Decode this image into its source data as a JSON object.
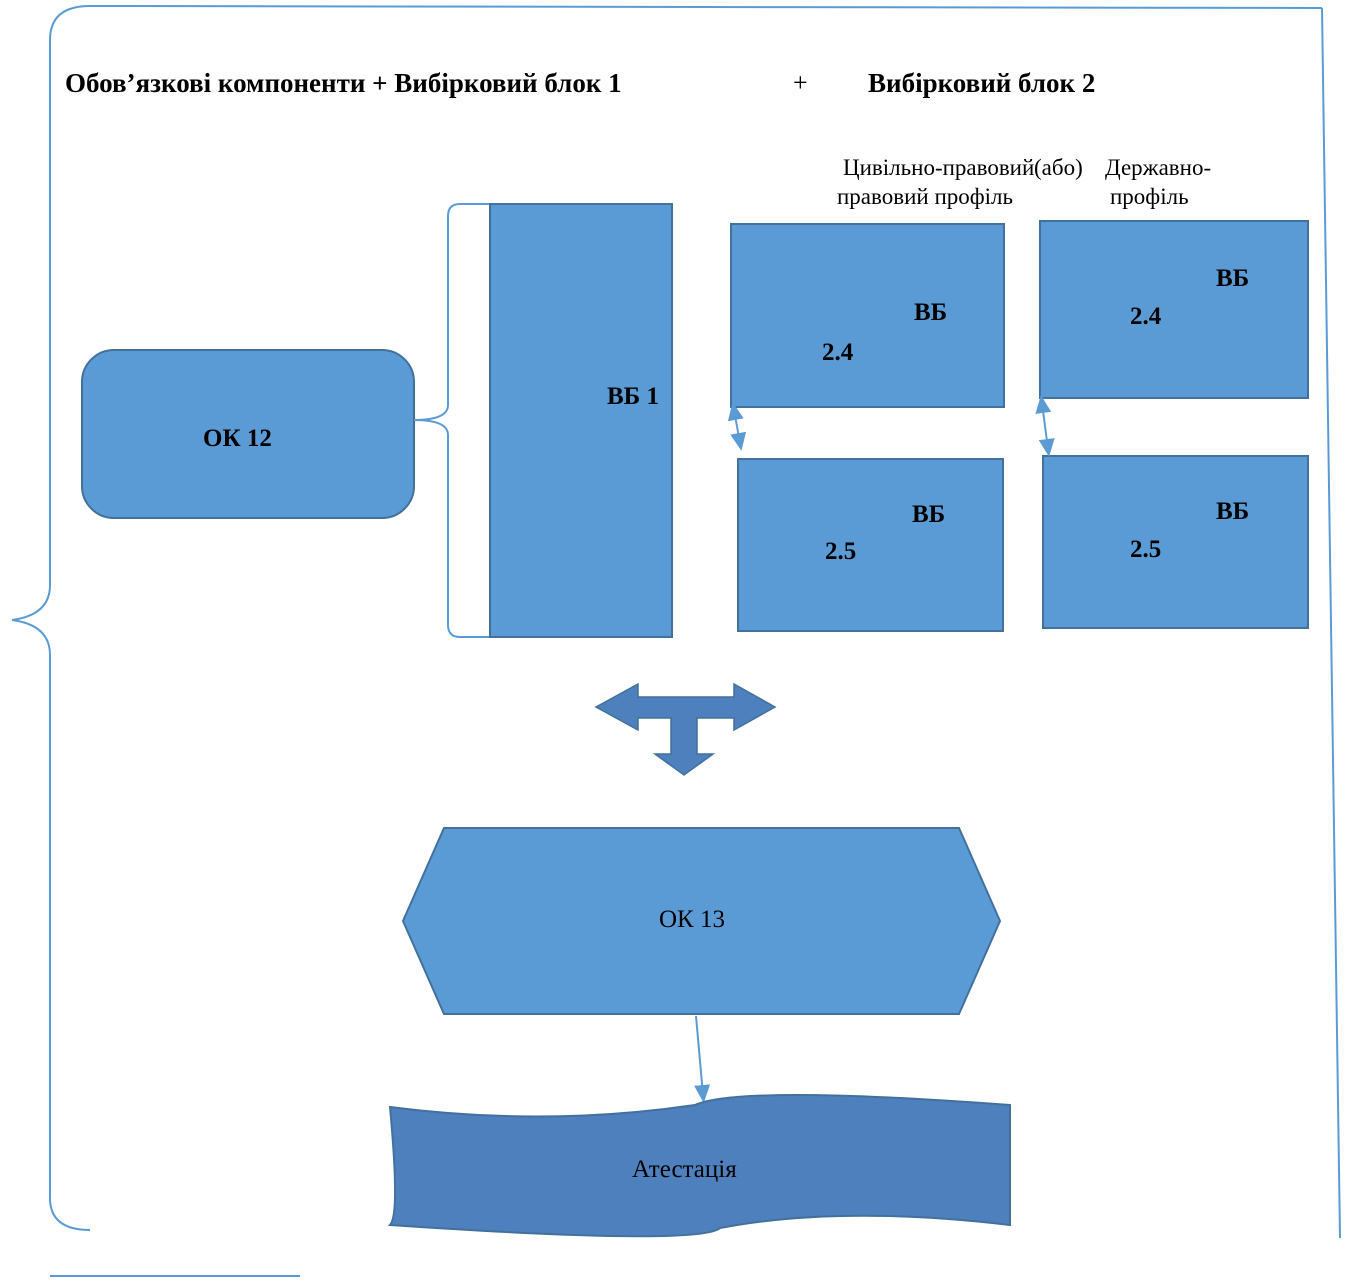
{
  "header": {
    "part1": "Обов’язкові компоненти + Вибірковий блок 1",
    "plus": "+",
    "part2": "Вибірковий блок 2"
  },
  "profiles": {
    "civil": {
      "line1": "Цивільно-правовий",
      "line2": "правовий профіль"
    },
    "or_word": "(або)",
    "state": {
      "line1": "Державно-",
      "line2": "профіль"
    }
  },
  "nodes": {
    "ok12": "ОК 12",
    "vb1": "ВБ 1",
    "civil_24": {
      "prefix": "ВБ",
      "number": "2.4"
    },
    "civil_25": {
      "prefix": "ВБ",
      "number": "2.5"
    },
    "state_24": {
      "prefix": "ВБ",
      "number": "2.4"
    },
    "state_25": {
      "prefix": "ВБ",
      "number": "2.5"
    },
    "ok13": "ОК 13",
    "attestation": "Атестація"
  },
  "colors": {
    "box_fill": "#5b9bd5",
    "box_stroke": "#41719c",
    "dark_fill": "#4e80bd",
    "line": "#5b9bd5"
  }
}
